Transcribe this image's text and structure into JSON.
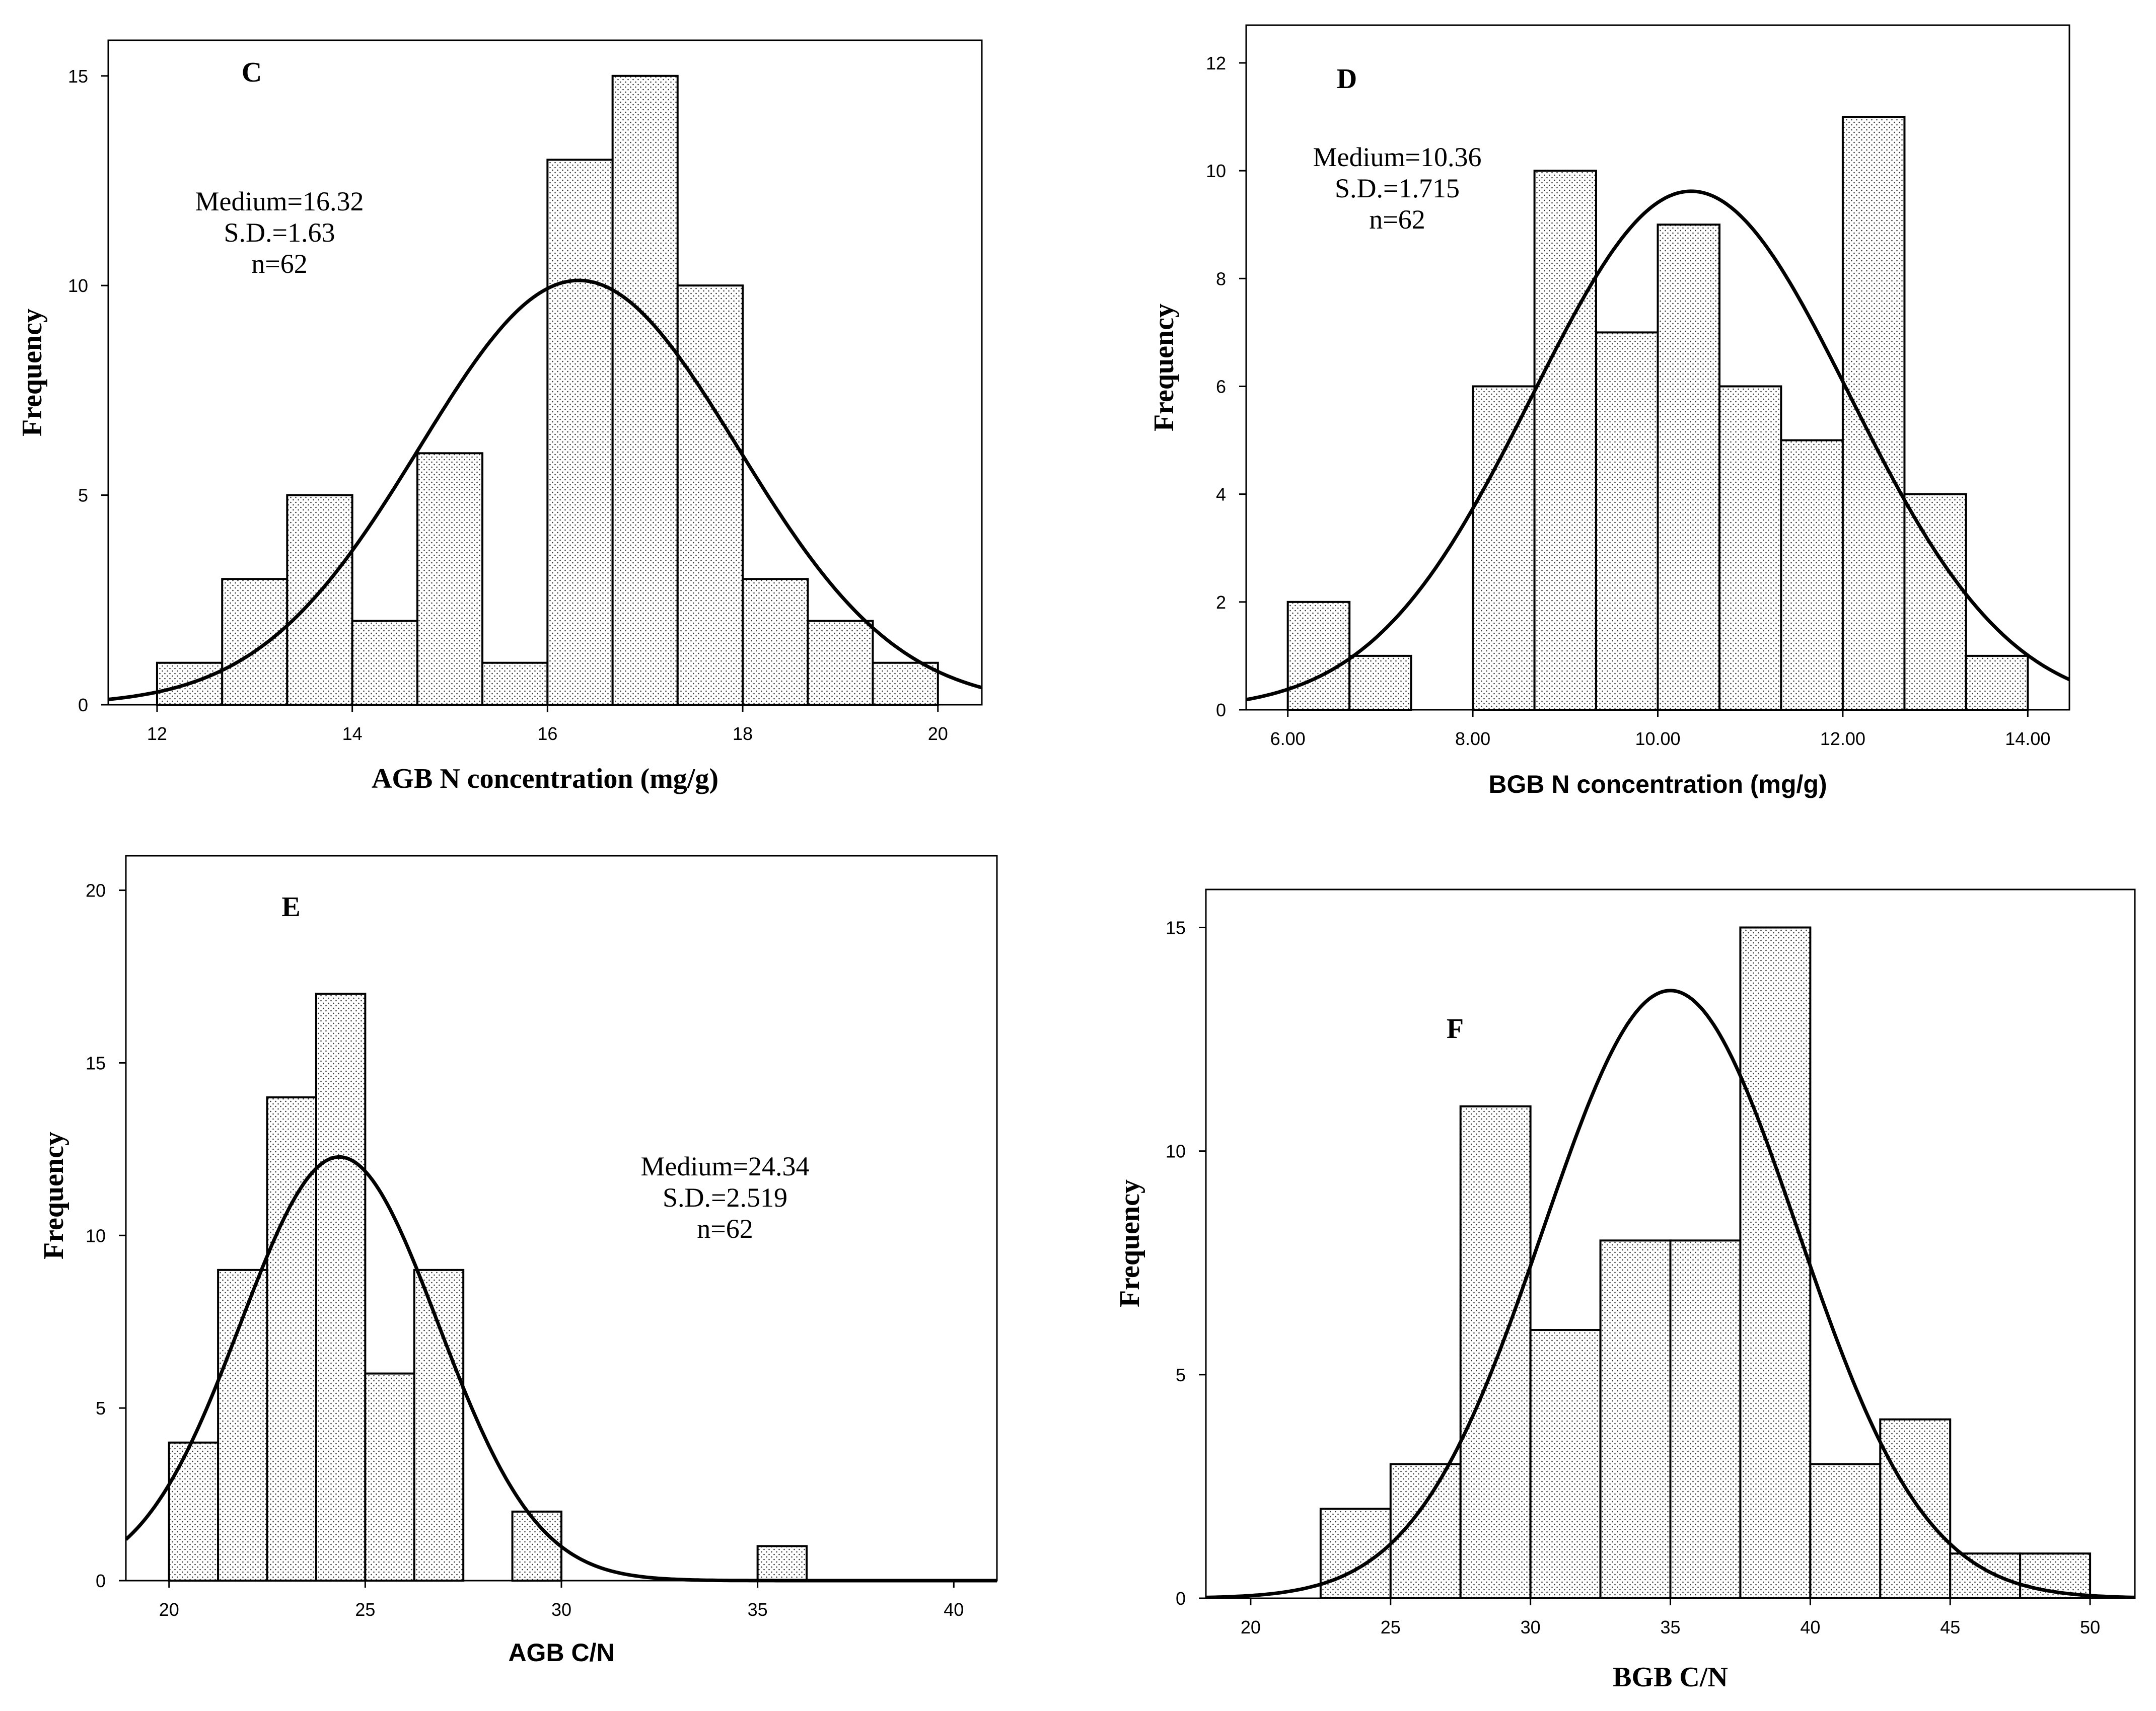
{
  "chart_data": [
    {
      "type": "bar",
      "panel": "C",
      "title": "",
      "xlabel": "AGB N concentration (mg/g)",
      "ylabel": "Frequency",
      "xlim": [
        11.5,
        20.45
      ],
      "ylim": [
        0,
        15.85
      ],
      "xticks": [
        "12",
        "14",
        "16",
        "18",
        "20"
      ],
      "xtick_values": [
        12,
        14,
        16,
        18,
        20
      ],
      "yticks": [
        "0",
        "5",
        "10",
        "15"
      ],
      "ytick_values": [
        0,
        5,
        10,
        15
      ],
      "bin_edges": [
        12.0,
        12.667,
        13.333,
        14.0,
        14.667,
        15.333,
        16.0,
        16.667,
        17.333,
        18.0,
        18.667,
        19.333,
        20.0
      ],
      "values": [
        1,
        3,
        5,
        2,
        6,
        1,
        13,
        15,
        10,
        3,
        2,
        1
      ],
      "normal_curve": {
        "mean": 16.32,
        "sd": 1.63,
        "n": 62
      },
      "stats": [
        "Medium=16.32",
        "S.D.=1.63",
        "n=62"
      ]
    },
    {
      "type": "bar",
      "panel": "D",
      "title": "",
      "xlabel": "BGB N concentration (mg/g)",
      "ylabel": "Frequency",
      "xlim": [
        5.55,
        14.45
      ],
      "ylim": [
        0,
        12.7
      ],
      "xticks": [
        "6.00",
        "8.00",
        "10.00",
        "12.00",
        "14.00"
      ],
      "xtick_values": [
        6,
        8,
        10,
        12,
        14
      ],
      "yticks": [
        "0",
        "2",
        "4",
        "6",
        "8",
        "10",
        "12"
      ],
      "ytick_values": [
        0,
        2,
        4,
        6,
        8,
        10,
        12
      ],
      "bin_edges": [
        6.0,
        6.667,
        7.333,
        8.0,
        8.667,
        9.333,
        10.0,
        10.667,
        11.333,
        12.0,
        12.667,
        13.333,
        14.0
      ],
      "values": [
        2,
        1,
        0,
        6,
        10,
        7,
        9,
        6,
        5,
        11,
        4,
        1
      ],
      "normal_curve": {
        "mean": 10.36,
        "sd": 1.715,
        "n": 62
      },
      "stats": [
        "Medium=10.36",
        "S.D.=1.715",
        "n=62"
      ]
    },
    {
      "type": "bar",
      "panel": "E",
      "title": "",
      "xlabel": "AGB C/N",
      "ylabel": "Frequency",
      "xlim": [
        18.9,
        41.1
      ],
      "ylim": [
        0,
        21.0
      ],
      "xticks": [
        "20",
        "25",
        "30",
        "35",
        "40"
      ],
      "xtick_values": [
        20,
        25,
        30,
        35,
        40
      ],
      "yticks": [
        "0",
        "5",
        "10",
        "15",
        "20"
      ],
      "ytick_values": [
        0,
        5,
        10,
        15,
        20
      ],
      "bin_edges": [
        20.0,
        21.25,
        22.5,
        23.75,
        25.0,
        26.25,
        27.5,
        28.75,
        30.0,
        31.25,
        32.5,
        33.75,
        35.0,
        36.25
      ],
      "values": [
        4,
        9,
        14,
        17,
        6,
        9,
        0,
        2,
        0,
        0,
        0,
        0,
        1
      ],
      "normal_curve": {
        "mean": 24.34,
        "sd": 2.519,
        "n": 62
      },
      "stats": [
        "Medium=24.34",
        "S.D.=2.519",
        "n=62"
      ]
    },
    {
      "type": "bar",
      "panel": "F",
      "title": "",
      "xlabel": "BGB C/N",
      "ylabel": "Frequency",
      "xlim": [
        18.4,
        51.6
      ],
      "ylim": [
        0,
        15.85
      ],
      "xticks": [
        "20",
        "25",
        "30",
        "35",
        "40",
        "45",
        "50"
      ],
      "xtick_values": [
        20,
        25,
        30,
        35,
        40,
        45,
        50
      ],
      "yticks": [
        "0",
        "5",
        "10",
        "15"
      ],
      "ytick_values": [
        0,
        5,
        10,
        15
      ],
      "bin_edges": [
        22.5,
        25.0,
        27.5,
        30.0,
        32.5,
        35.0,
        37.5,
        40.0,
        42.5,
        45.0,
        47.5,
        50.0
      ],
      "values": [
        2,
        3,
        11,
        6,
        8,
        8,
        15,
        3,
        4,
        1,
        1
      ],
      "normal_curve": {
        "mean": 35.0,
        "sd": 4.55,
        "n": 62
      },
      "stats": []
    }
  ]
}
